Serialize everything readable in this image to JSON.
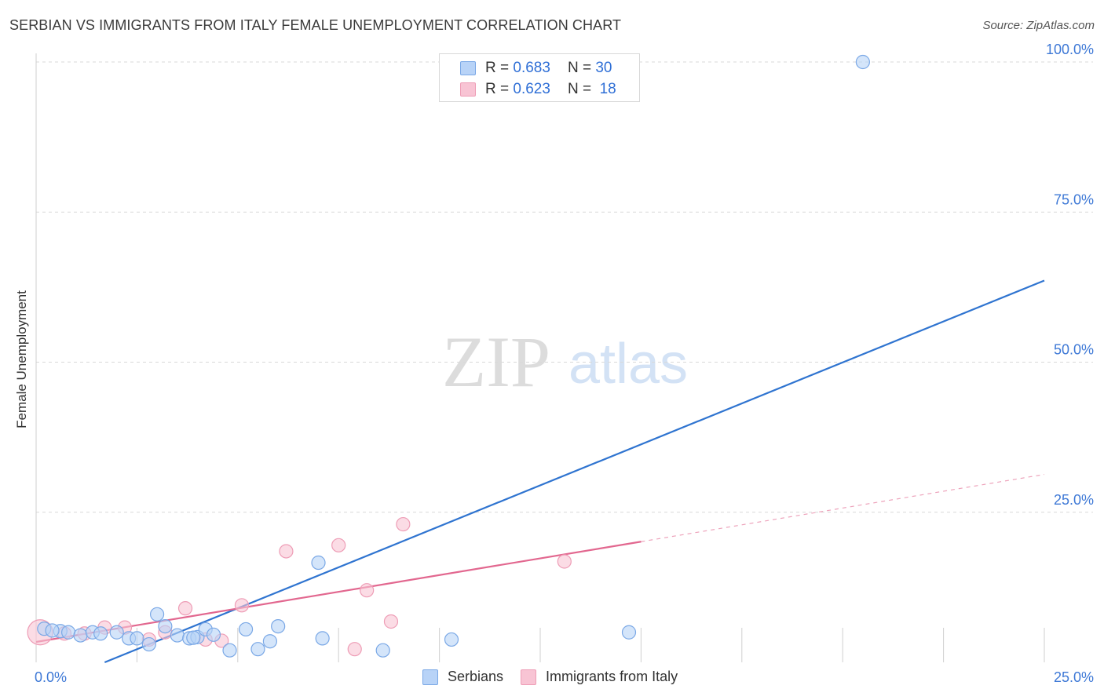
{
  "title": "SERBIAN VS IMMIGRANTS FROM ITALY FEMALE UNEMPLOYMENT CORRELATION CHART",
  "source": "Source: ZipAtlas.com",
  "watermark": {
    "zip": "ZIP",
    "atlas": "atlas"
  },
  "legend": {
    "rows": [
      {
        "r_label": "R =",
        "r_value": "0.683",
        "n_label": "N =",
        "n_value": "30"
      },
      {
        "r_label": "R =",
        "r_value": "0.623",
        "n_label": "N =",
        "n_value": "18"
      }
    ]
  },
  "bottom_legend": {
    "serbians": "Serbians",
    "italy": "Immigrants from Italy"
  },
  "colors": {
    "serbians_fill": "#b8d3f7",
    "serbians_stroke": "#7aa8e6",
    "serbians_line": "#2f74d0",
    "italy_fill": "#f8c4d4",
    "italy_stroke": "#ee9db6",
    "italy_line": "#e2678f",
    "tick_text": "#3d78d6",
    "grid": "#d9d9d9"
  },
  "chart_data": {
    "type": "scatter",
    "title": "SERBIAN VS IMMIGRANTS FROM ITALY FEMALE UNEMPLOYMENT CORRELATION CHART",
    "xlabel": "",
    "ylabel": "Female Unemployment",
    "xlim": [
      0,
      25
    ],
    "ylim": [
      0,
      100
    ],
    "x_tick_labels": [
      "0.0%",
      "25.0%"
    ],
    "y_ticks": [
      25,
      50,
      75,
      100
    ],
    "y_tick_labels": [
      "25.0%",
      "50.0%",
      "75.0%",
      "100.0%"
    ],
    "grid": true,
    "series": [
      {
        "name": "Serbians",
        "r": 0.683,
        "n": 30,
        "points": [
          [
            0.2,
            5.6
          ],
          [
            0.6,
            5.2
          ],
          [
            0.8,
            5.0
          ],
          [
            1.1,
            4.5
          ],
          [
            1.4,
            5.0
          ],
          [
            1.6,
            4.8
          ],
          [
            2.0,
            5.0
          ],
          [
            2.3,
            4.0
          ],
          [
            2.5,
            4.0
          ],
          [
            2.8,
            3.0
          ],
          [
            3.0,
            8.0
          ],
          [
            3.2,
            6.0
          ],
          [
            3.5,
            4.5
          ],
          [
            3.8,
            4.0
          ],
          [
            4.0,
            4.2
          ],
          [
            4.2,
            5.5
          ],
          [
            4.4,
            4.6
          ],
          [
            4.8,
            2.0
          ],
          [
            5.2,
            5.5
          ],
          [
            5.5,
            2.2
          ],
          [
            5.8,
            3.5
          ],
          [
            6.0,
            6.0
          ],
          [
            7.0,
            16.6
          ],
          [
            7.1,
            4.0
          ],
          [
            8.6,
            2.0
          ],
          [
            10.3,
            3.8
          ],
          [
            14.7,
            5.0
          ],
          [
            20.5,
            100.0
          ],
          [
            0.4,
            5.3
          ],
          [
            3.9,
            4.1
          ]
        ],
        "trend": {
          "x": [
            1.7,
            25.0
          ],
          "y": [
            0.0,
            63.6
          ]
        }
      },
      {
        "name": "Immigrants from Italy",
        "r": 0.623,
        "n": 18,
        "points": [
          [
            0.1,
            5.0
          ],
          [
            0.7,
            4.8
          ],
          [
            1.2,
            4.8
          ],
          [
            1.7,
            5.8
          ],
          [
            2.2,
            5.8
          ],
          [
            2.8,
            3.8
          ],
          [
            3.2,
            5.0
          ],
          [
            3.7,
            9.0
          ],
          [
            4.2,
            3.8
          ],
          [
            4.6,
            3.6
          ],
          [
            5.1,
            9.5
          ],
          [
            6.2,
            18.5
          ],
          [
            7.5,
            19.5
          ],
          [
            7.9,
            2.2
          ],
          [
            8.2,
            12.0
          ],
          [
            8.8,
            6.8
          ],
          [
            9.1,
            23.0
          ],
          [
            13.1,
            16.8
          ]
        ],
        "trend": {
          "x": [
            0.0,
            15.0
          ],
          "y": [
            3.4,
            20.1
          ]
        },
        "trend_extension": {
          "x": [
            15.0,
            25.0
          ],
          "y": [
            20.1,
            31.3
          ]
        }
      }
    ]
  }
}
